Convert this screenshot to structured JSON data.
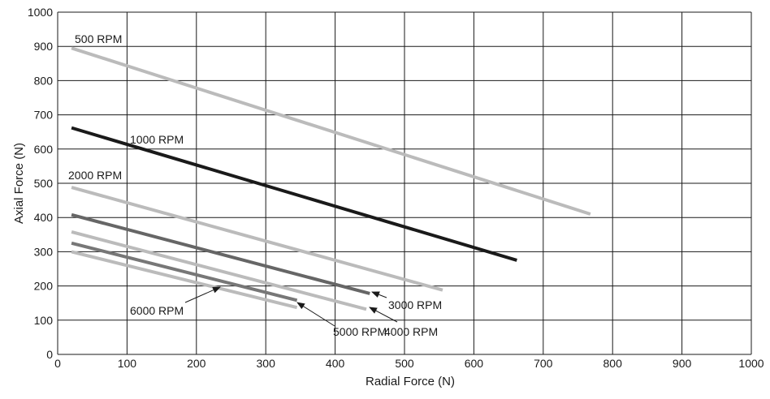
{
  "chart_data": {
    "type": "line",
    "title": "",
    "xlabel": "Radial Force (N)",
    "ylabel": "Axial Force (N)",
    "xlim": [
      0,
      1000
    ],
    "ylim": [
      0,
      1000
    ],
    "x_ticks": [
      "0",
      "100",
      "200",
      "300",
      "400",
      "500",
      "600",
      "700",
      "800",
      "900",
      "1000"
    ],
    "y_ticks": [
      "0",
      "100",
      "200",
      "300",
      "400",
      "500",
      "600",
      "700",
      "800",
      "900",
      "1000"
    ],
    "grid": true,
    "series": [
      {
        "name": "500 RPM",
        "color": "#bbbbbb",
        "x": [
          20,
          768
        ],
        "y": [
          895,
          410
        ]
      },
      {
        "name": "1000 RPM",
        "color": "#1a1a1a",
        "x": [
          20,
          662
        ],
        "y": [
          662,
          275
        ]
      },
      {
        "name": "2000 RPM",
        "color": "#bbbbbb",
        "x": [
          20,
          555
        ],
        "y": [
          488,
          188
        ]
      },
      {
        "name": "3000 RPM",
        "color": "#666666",
        "x": [
          20,
          450
        ],
        "y": [
          408,
          178
        ]
      },
      {
        "name": "4000 RPM",
        "color": "#bbbbbb",
        "x": [
          20,
          445
        ],
        "y": [
          358,
          132
        ]
      },
      {
        "name": "5000 RPM",
        "color": "#777777",
        "x": [
          20,
          345
        ],
        "y": [
          325,
          158
        ]
      },
      {
        "name": "6000 RPM",
        "color": "#bbbbbb",
        "x": [
          20,
          345
        ],
        "y": [
          300,
          137
        ]
      }
    ]
  }
}
